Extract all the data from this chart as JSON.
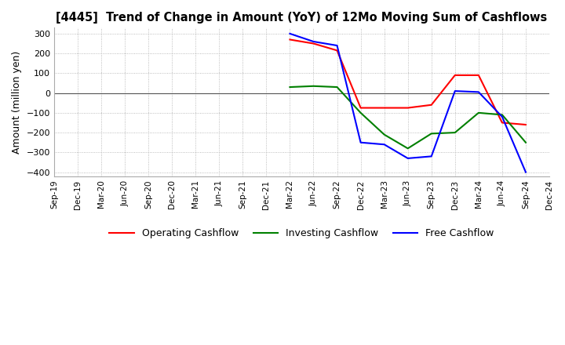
{
  "title": "[4445]  Trend of Change in Amount (YoY) of 12Mo Moving Sum of Cashflows",
  "ylabel": "Amount (million yen)",
  "ylim": [
    -420,
    330
  ],
  "yticks": [
    -400,
    -300,
    -200,
    -100,
    0,
    100,
    200,
    300
  ],
  "colors": {
    "operating": "#ff0000",
    "investing": "#008000",
    "free": "#0000ff"
  },
  "legend": [
    "Operating Cashflow",
    "Investing Cashflow",
    "Free Cashflow"
  ],
  "x_labels": [
    "Sep-19",
    "Dec-19",
    "Mar-20",
    "Jun-20",
    "Sep-20",
    "Dec-20",
    "Mar-21",
    "Jun-21",
    "Sep-21",
    "Dec-21",
    "Mar-22",
    "Jun-22",
    "Sep-22",
    "Dec-22",
    "Mar-23",
    "Jun-23",
    "Sep-23",
    "Dec-23",
    "Mar-24",
    "Jun-24",
    "Sep-24",
    "Dec-24"
  ],
  "operating": [
    null,
    null,
    null,
    null,
    null,
    null,
    null,
    null,
    null,
    null,
    270,
    250,
    215,
    -75,
    -75,
    -75,
    -60,
    90,
    90,
    -150,
    -160,
    null
  ],
  "investing": [
    null,
    null,
    null,
    null,
    null,
    null,
    null,
    null,
    null,
    null,
    30,
    35,
    30,
    -100,
    -210,
    -280,
    -205,
    -200,
    -100,
    -110,
    -250,
    null
  ],
  "free": [
    null,
    null,
    null,
    null,
    null,
    null,
    null,
    null,
    null,
    null,
    300,
    260,
    240,
    -250,
    -260,
    -330,
    -320,
    10,
    5,
    -120,
    -400,
    null
  ]
}
